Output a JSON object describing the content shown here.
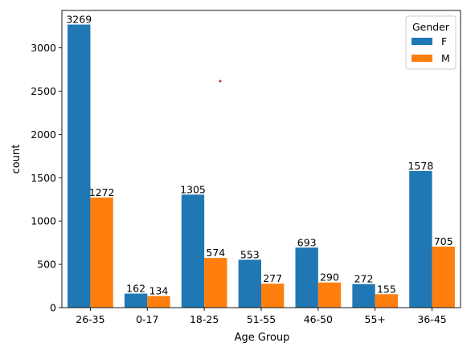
{
  "chart_data": {
    "type": "bar",
    "title": "",
    "xlabel": "Age Group",
    "ylabel": "count",
    "categories": [
      "26-35",
      "0-17",
      "18-25",
      "51-55",
      "46-50",
      "55+",
      "36-45"
    ],
    "series": [
      {
        "name": "F",
        "color": "#1f77b4",
        "values": [
          3269,
          162,
          1305,
          553,
          693,
          272,
          1578
        ]
      },
      {
        "name": "M",
        "color": "#ff7f0e",
        "values": [
          1272,
          134,
          574,
          277,
          290,
          155,
          705
        ]
      }
    ],
    "ylim": [
      0,
      3432
    ],
    "yticks": [
      0,
      500,
      1000,
      1500,
      2000,
      2500,
      3000
    ],
    "legend": {
      "title": "Gender",
      "placement": "top-right"
    },
    "grid": false
  }
}
